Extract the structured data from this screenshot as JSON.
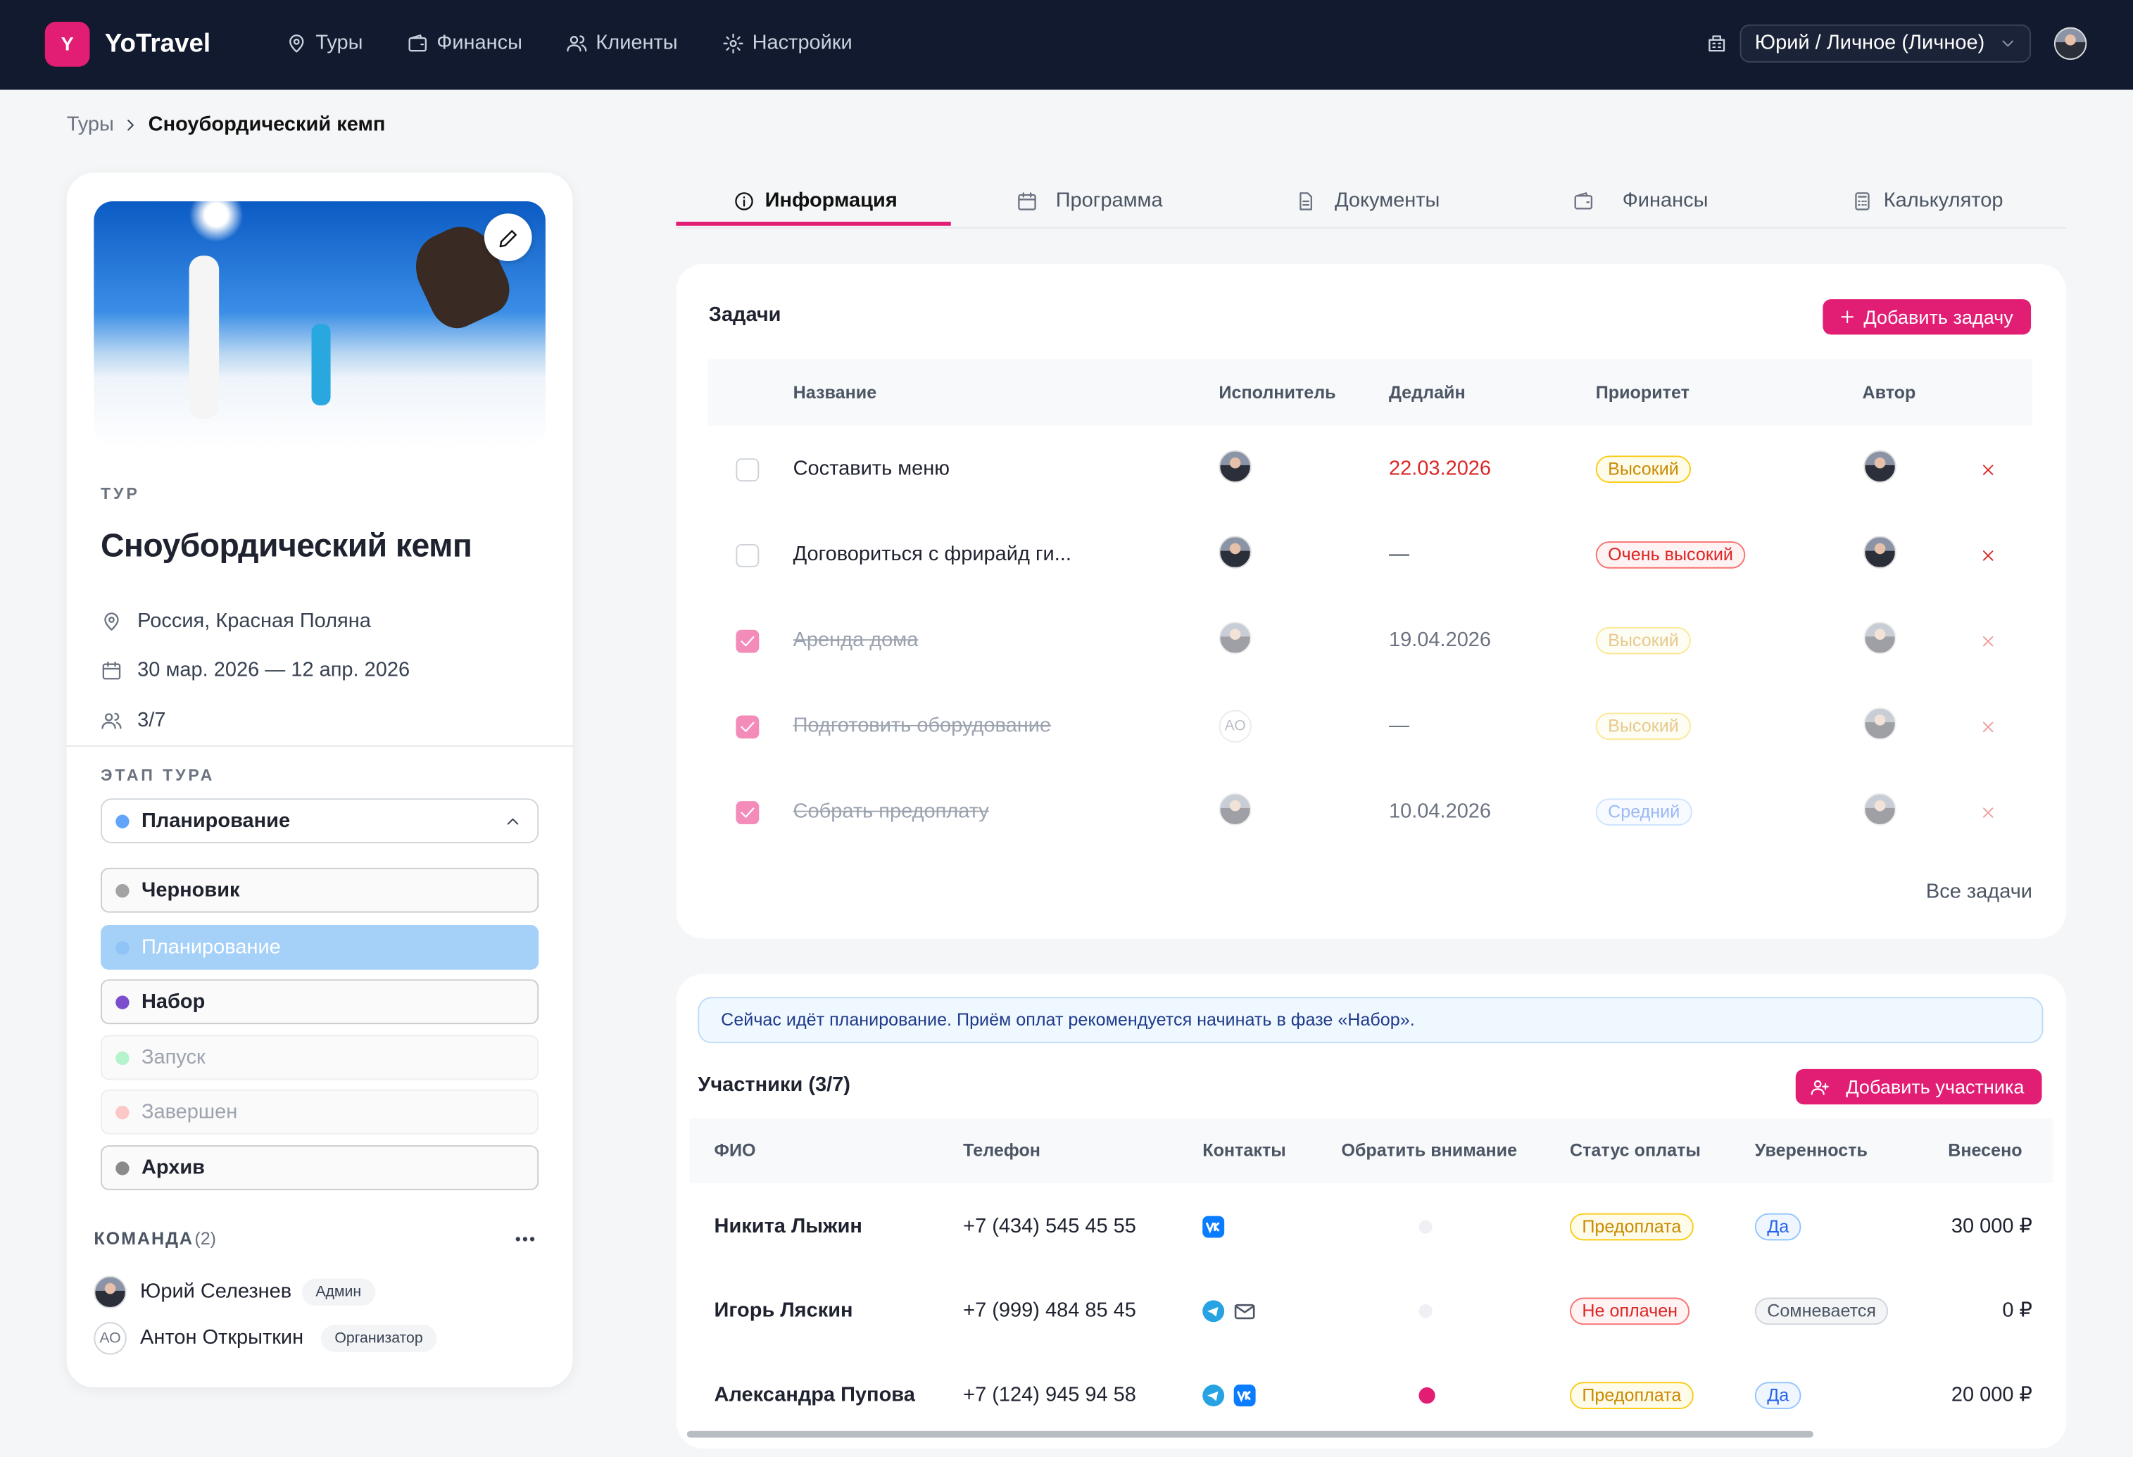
{
  "nav": {
    "logo": "Y",
    "brand": "YoTravel",
    "menu": [
      "Туры",
      "Финансы",
      "Клиенты",
      "Настройки"
    ],
    "account": "Юрий / Личное (Личное)"
  },
  "breadcrumb": [
    "Туры",
    "Сноубордический кемп"
  ],
  "tour": {
    "label": "ТУР",
    "title": "Сноубордический кемп",
    "location": "Россия, Красная Поляна",
    "dates": "30 мар. 2026 — 12 апр. 2026",
    "capacity": "3/7",
    "stage_label": "ЭТАП ТУРА",
    "stage": "Планирование",
    "stages": [
      {
        "name": "Черновик",
        "color": "#a3a3a3"
      },
      {
        "name": "Планирование",
        "color": "#60a5fa"
      },
      {
        "name": "Набор",
        "color": "#7c4dcc"
      },
      {
        "name": "Запуск",
        "color": "#86efac"
      },
      {
        "name": "Завершен",
        "color": "#fca5a5"
      },
      {
        "name": "Архив",
        "color": "#8a8a8a"
      }
    ],
    "team_label": "КОМАНДА",
    "team_count": "(2)",
    "team": [
      {
        "name": "Юрий Селезнев",
        "role": "Админ"
      },
      {
        "name": "Антон Открыткин",
        "initials": "АО",
        "role": "Организатор"
      }
    ]
  },
  "tabs": [
    "Информация",
    "Программа",
    "Документы",
    "Финансы",
    "Калькулятор"
  ],
  "tasks": {
    "title": "Задачи",
    "add": "Добавить задачу",
    "columns": [
      "Название",
      "Исполнитель",
      "Дедлайн",
      "Приоритет",
      "Автор"
    ],
    "rows": [
      {
        "done": false,
        "name": "Составить меню",
        "deadline": "22.03.2026",
        "priority": "Высокий"
      },
      {
        "done": false,
        "name": "Договориться с фрирайд ги...",
        "deadline": "—",
        "priority": "Очень высокий"
      },
      {
        "done": true,
        "name": "Аренда дома",
        "deadline": "19.04.2026",
        "priority": "Высокий"
      },
      {
        "done": true,
        "name": "Подготовить оборудование",
        "assignee": "АО",
        "deadline": "—",
        "priority": "Высокий"
      },
      {
        "done": true,
        "name": "Собрать предоплату",
        "deadline": "10.04.2026",
        "priority": "Средний"
      }
    ],
    "footer": "Все задачи"
  },
  "participants": {
    "notice": "Сейчас идёт планирование. Приём оплат рекомендуется начинать в фазе «Набор».",
    "title": "Участники (3/7)",
    "add": "Добавить участника",
    "columns": [
      "ФИО",
      "Телефон",
      "Контакты",
      "Обратить внимание",
      "Статус оплаты",
      "Уверенность",
      "Внесено"
    ],
    "rows": [
      {
        "name": "Никита Лыжин",
        "phone": "+7 (434) 545 45 55",
        "attention": false,
        "status": "Предоплата",
        "confidence": "Да",
        "paid": "30 000 ₽"
      },
      {
        "name": "Игорь Ляскин",
        "phone": "+7 (999) 484 85 45",
        "attention": false,
        "status": "Не оплачен",
        "confidence": "Сомневается",
        "paid": "0 ₽"
      },
      {
        "name": "Александра Пупова",
        "phone": "+7 (124) 945 94 58",
        "attention": true,
        "status": "Предоплата",
        "confidence": "Да",
        "paid": "20 000 ₽"
      }
    ]
  }
}
